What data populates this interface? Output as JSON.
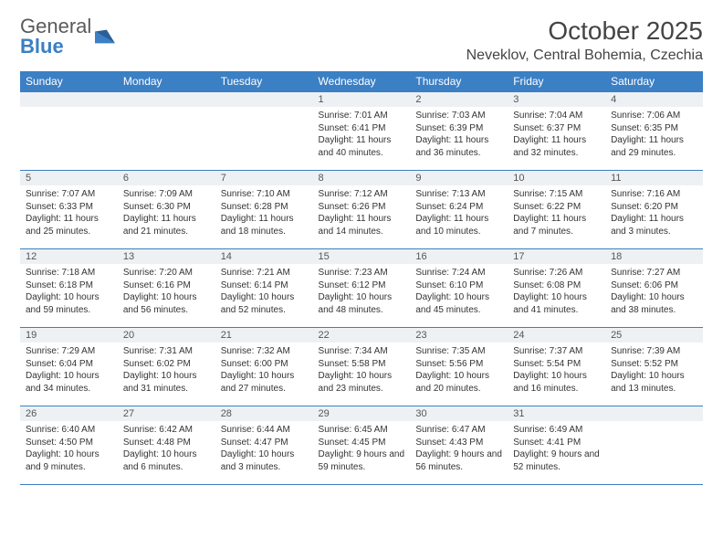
{
  "brand": {
    "line1": "General",
    "line2": "Blue"
  },
  "header": {
    "title": "October 2025",
    "location": "Neveklov, Central Bohemia, Czechia"
  },
  "colors": {
    "accent": "#3b7fc4",
    "header_bg": "#3b7fc4",
    "header_text": "#ffffff",
    "daynum_bg": "#eef1f4",
    "border": "#3b7fc4",
    "text": "#333333"
  },
  "daysOfWeek": [
    "Sunday",
    "Monday",
    "Tuesday",
    "Wednesday",
    "Thursday",
    "Friday",
    "Saturday"
  ],
  "startOffset": 3,
  "days": [
    {
      "n": 1,
      "sunrise": "7:01 AM",
      "sunset": "6:41 PM",
      "daylight": "11 hours and 40 minutes."
    },
    {
      "n": 2,
      "sunrise": "7:03 AM",
      "sunset": "6:39 PM",
      "daylight": "11 hours and 36 minutes."
    },
    {
      "n": 3,
      "sunrise": "7:04 AM",
      "sunset": "6:37 PM",
      "daylight": "11 hours and 32 minutes."
    },
    {
      "n": 4,
      "sunrise": "7:06 AM",
      "sunset": "6:35 PM",
      "daylight": "11 hours and 29 minutes."
    },
    {
      "n": 5,
      "sunrise": "7:07 AM",
      "sunset": "6:33 PM",
      "daylight": "11 hours and 25 minutes."
    },
    {
      "n": 6,
      "sunrise": "7:09 AM",
      "sunset": "6:30 PM",
      "daylight": "11 hours and 21 minutes."
    },
    {
      "n": 7,
      "sunrise": "7:10 AM",
      "sunset": "6:28 PM",
      "daylight": "11 hours and 18 minutes."
    },
    {
      "n": 8,
      "sunrise": "7:12 AM",
      "sunset": "6:26 PM",
      "daylight": "11 hours and 14 minutes."
    },
    {
      "n": 9,
      "sunrise": "7:13 AM",
      "sunset": "6:24 PM",
      "daylight": "11 hours and 10 minutes."
    },
    {
      "n": 10,
      "sunrise": "7:15 AM",
      "sunset": "6:22 PM",
      "daylight": "11 hours and 7 minutes."
    },
    {
      "n": 11,
      "sunrise": "7:16 AM",
      "sunset": "6:20 PM",
      "daylight": "11 hours and 3 minutes."
    },
    {
      "n": 12,
      "sunrise": "7:18 AM",
      "sunset": "6:18 PM",
      "daylight": "10 hours and 59 minutes."
    },
    {
      "n": 13,
      "sunrise": "7:20 AM",
      "sunset": "6:16 PM",
      "daylight": "10 hours and 56 minutes."
    },
    {
      "n": 14,
      "sunrise": "7:21 AM",
      "sunset": "6:14 PM",
      "daylight": "10 hours and 52 minutes."
    },
    {
      "n": 15,
      "sunrise": "7:23 AM",
      "sunset": "6:12 PM",
      "daylight": "10 hours and 48 minutes."
    },
    {
      "n": 16,
      "sunrise": "7:24 AM",
      "sunset": "6:10 PM",
      "daylight": "10 hours and 45 minutes."
    },
    {
      "n": 17,
      "sunrise": "7:26 AM",
      "sunset": "6:08 PM",
      "daylight": "10 hours and 41 minutes."
    },
    {
      "n": 18,
      "sunrise": "7:27 AM",
      "sunset": "6:06 PM",
      "daylight": "10 hours and 38 minutes."
    },
    {
      "n": 19,
      "sunrise": "7:29 AM",
      "sunset": "6:04 PM",
      "daylight": "10 hours and 34 minutes."
    },
    {
      "n": 20,
      "sunrise": "7:31 AM",
      "sunset": "6:02 PM",
      "daylight": "10 hours and 31 minutes."
    },
    {
      "n": 21,
      "sunrise": "7:32 AM",
      "sunset": "6:00 PM",
      "daylight": "10 hours and 27 minutes."
    },
    {
      "n": 22,
      "sunrise": "7:34 AM",
      "sunset": "5:58 PM",
      "daylight": "10 hours and 23 minutes."
    },
    {
      "n": 23,
      "sunrise": "7:35 AM",
      "sunset": "5:56 PM",
      "daylight": "10 hours and 20 minutes."
    },
    {
      "n": 24,
      "sunrise": "7:37 AM",
      "sunset": "5:54 PM",
      "daylight": "10 hours and 16 minutes."
    },
    {
      "n": 25,
      "sunrise": "7:39 AM",
      "sunset": "5:52 PM",
      "daylight": "10 hours and 13 minutes."
    },
    {
      "n": 26,
      "sunrise": "6:40 AM",
      "sunset": "4:50 PM",
      "daylight": "10 hours and 9 minutes."
    },
    {
      "n": 27,
      "sunrise": "6:42 AM",
      "sunset": "4:48 PM",
      "daylight": "10 hours and 6 minutes."
    },
    {
      "n": 28,
      "sunrise": "6:44 AM",
      "sunset": "4:47 PM",
      "daylight": "10 hours and 3 minutes."
    },
    {
      "n": 29,
      "sunrise": "6:45 AM",
      "sunset": "4:45 PM",
      "daylight": "9 hours and 59 minutes."
    },
    {
      "n": 30,
      "sunrise": "6:47 AM",
      "sunset": "4:43 PM",
      "daylight": "9 hours and 56 minutes."
    },
    {
      "n": 31,
      "sunrise": "6:49 AM",
      "sunset": "4:41 PM",
      "daylight": "9 hours and 52 minutes."
    }
  ],
  "labels": {
    "sunrise": "Sunrise:",
    "sunset": "Sunset:",
    "daylight": "Daylight:"
  }
}
